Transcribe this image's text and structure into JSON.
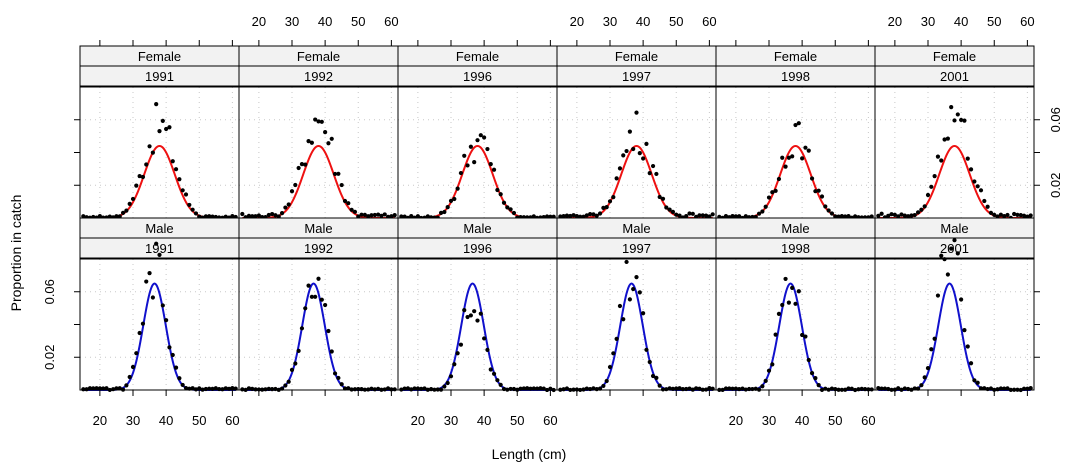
{
  "chart_data": {
    "type": "scatter",
    "xlabel": "Length (cm)",
    "ylabel": "Proportion in catch",
    "xlim": [
      14,
      62
    ],
    "ylim": [
      0,
      0.08
    ],
    "x_ticks": [
      20,
      30,
      40,
      50,
      60
    ],
    "y_ticks": [
      0.02,
      0.06
    ],
    "grid": true,
    "colors": {
      "Female": "#ee1111",
      "Male": "#1111cc",
      "points": "#000000",
      "strip": "#f2f2f2"
    },
    "rows": [
      {
        "sex": "Female",
        "mean": 38,
        "sd": 4.6,
        "peak": 0.044
      },
      {
        "sex": "Male",
        "mean": 36.5,
        "sd": 3.4,
        "peak": 0.065
      }
    ],
    "panels": [
      {
        "sex": "Female",
        "year": "1991",
        "peak_obs": 0.057
      },
      {
        "sex": "Female",
        "year": "1992",
        "peak_obs": 0.061
      },
      {
        "sex": "Female",
        "year": "1996",
        "peak_obs": 0.046
      },
      {
        "sex": "Female",
        "year": "1997",
        "peak_obs": 0.053
      },
      {
        "sex": "Female",
        "year": "1998",
        "peak_obs": 0.05
      },
      {
        "sex": "Female",
        "year": "2001",
        "peak_obs": 0.062
      },
      {
        "sex": "Male",
        "year": "1991",
        "peak_obs": 0.073
      },
      {
        "sex": "Male",
        "year": "1992",
        "peak_obs": 0.073
      },
      {
        "sex": "Male",
        "year": "1996",
        "peak_obs": 0.058
      },
      {
        "sex": "Male",
        "year": "1997",
        "peak_obs": 0.07
      },
      {
        "sex": "Male",
        "year": "1998",
        "peak_obs": 0.067
      },
      {
        "sex": "Male",
        "year": "2001",
        "peak_obs": 0.088
      }
    ]
  }
}
